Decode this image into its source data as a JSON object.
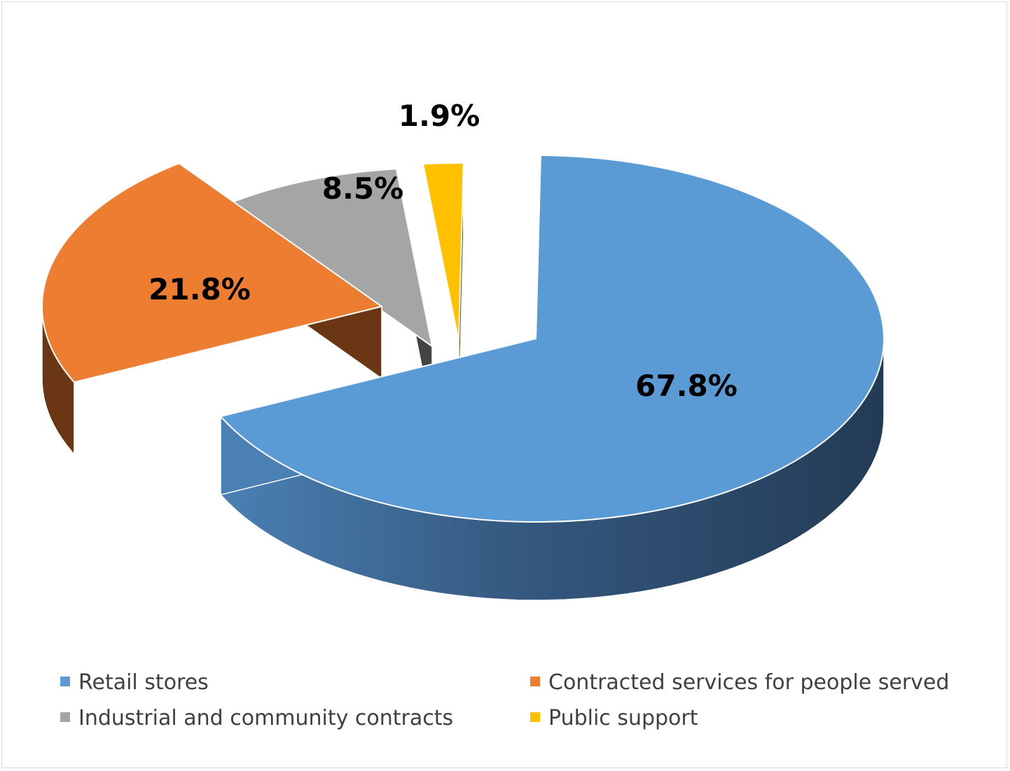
{
  "chart_data": {
    "type": "pie",
    "style": "3d-exploded",
    "title": "",
    "categories": [
      "Retail stores",
      "Contracted services for people served",
      "Industrial and community contracts",
      "Public support"
    ],
    "values": [
      67.8,
      21.8,
      8.5,
      1.9
    ],
    "unit": "%",
    "data_labels": [
      "67.8%",
      "21.8%",
      "8.5%",
      "1.9%"
    ],
    "colors": [
      "#5b9bd5",
      "#ed7d31",
      "#a5a5a5",
      "#ffc000"
    ],
    "legend_position": "bottom"
  }
}
